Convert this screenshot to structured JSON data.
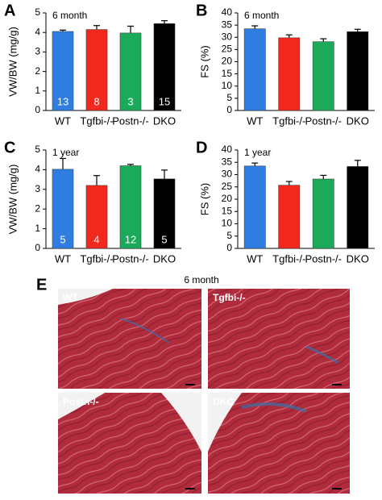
{
  "chart_data": [
    {
      "type": "bar",
      "panel": "A",
      "title": "6 month",
      "ylabel": "VW/BW (mg/g)",
      "categories": [
        "WT",
        "Tgfbi-/-",
        "Postn-/-",
        "DKO"
      ],
      "values": [
        4.05,
        4.15,
        3.97,
        4.45
      ],
      "errors": [
        0.07,
        0.2,
        0.35,
        0.15
      ],
      "n": [
        13,
        8,
        3,
        15
      ],
      "colors": [
        "#2f7de1",
        "#f0281e",
        "#1aaa5a",
        "#000000"
      ],
      "ylim": [
        0,
        5
      ],
      "yticks": [
        0,
        1,
        2,
        3,
        4,
        5
      ]
    },
    {
      "type": "bar",
      "panel": "B",
      "title": "6 month",
      "ylabel": "FS (%)",
      "categories": [
        "WT",
        "Tgfbi-/-",
        "Postn-/-",
        "DKO"
      ],
      "values": [
        33.5,
        29.8,
        28.2,
        32.3
      ],
      "errors": [
        1.2,
        1.2,
        1.2,
        1.0
      ],
      "colors": [
        "#2f7de1",
        "#f0281e",
        "#1aaa5a",
        "#000000"
      ],
      "ylim": [
        0,
        40
      ],
      "yticks": [
        0,
        5,
        10,
        15,
        20,
        25,
        30,
        35,
        40
      ]
    },
    {
      "type": "bar",
      "panel": "C",
      "title": "1 year",
      "ylabel": "VW/BW (mg/g)",
      "categories": [
        "WT",
        "Tgfbi-/-",
        "Postn-/-",
        "DKO"
      ],
      "values": [
        4.02,
        3.2,
        4.2,
        3.53
      ],
      "errors": [
        0.55,
        0.5,
        0.07,
        0.45
      ],
      "n": [
        5,
        4,
        12,
        5
      ],
      "colors": [
        "#2f7de1",
        "#f0281e",
        "#1aaa5a",
        "#000000"
      ],
      "ylim": [
        0,
        5
      ],
      "yticks": [
        0,
        1,
        2,
        3,
        4,
        5
      ]
    },
    {
      "type": "bar",
      "panel": "D",
      "title": "1 year",
      "ylabel": "FS (%)",
      "categories": [
        "WT",
        "Tgfbi-/-",
        "Postn-/-",
        "DKO"
      ],
      "values": [
        33.5,
        25.7,
        28.2,
        33.3
      ],
      "errors": [
        1.2,
        1.5,
        1.5,
        2.5
      ],
      "colors": [
        "#2f7de1",
        "#f0281e",
        "#1aaa5a",
        "#000000"
      ],
      "ylim": [
        0,
        40
      ],
      "yticks": [
        0,
        5,
        10,
        15,
        20,
        25,
        30,
        35,
        40
      ]
    }
  ],
  "panel_e": {
    "panel": "E",
    "title": "6 month",
    "images": [
      "WT",
      "Tgfbi-/-",
      "Postn-/-",
      "DKO"
    ]
  }
}
